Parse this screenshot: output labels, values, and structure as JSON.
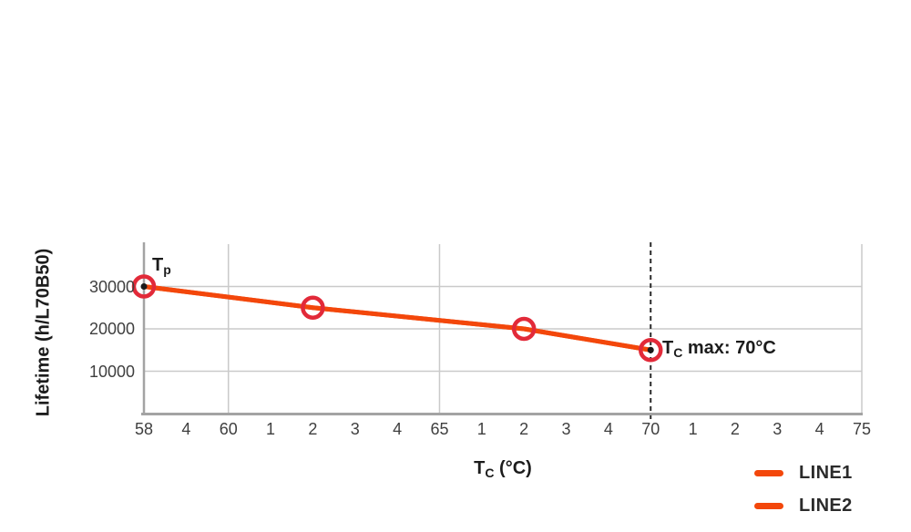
{
  "chart_data": {
    "type": "line",
    "title": "",
    "ylabel": "Lifetime (h/L70B50)",
    "xlabel": {
      "main": "T",
      "sub": "C",
      "rest": " (°C)"
    },
    "axes": {
      "xlim": [
        58,
        75
      ],
      "ylim": [
        0,
        40000
      ],
      "xtick_step": 1,
      "xtick_labels": [
        "58",
        "4",
        "60",
        "1",
        "2",
        "3",
        "4",
        "65",
        "1",
        "2",
        "3",
        "4",
        "70",
        "1",
        "2",
        "3",
        "4",
        "75"
      ],
      "ytick_values": [
        30000,
        20000,
        10000
      ],
      "ytick_labels": [
        "30000",
        "20000",
        "10000"
      ],
      "x_gridlines_at": [
        60,
        65,
        75
      ],
      "y_gridlines_at": [
        30000,
        20000,
        10000
      ],
      "dashed_vline_x": 70,
      "grid": true
    },
    "series": [
      {
        "name": "LINE1",
        "x": [
          58,
          62,
          67,
          70
        ],
        "y": [
          30000,
          25000,
          20000,
          15000
        ]
      },
      {
        "name": "LINE2",
        "x": [
          58,
          62,
          67,
          70
        ],
        "y": [
          30000,
          25000,
          20000,
          15000
        ]
      }
    ],
    "marker_points": [
      [
        58,
        30000
      ],
      [
        62,
        25000
      ],
      [
        67,
        20000
      ],
      [
        70,
        15000
      ]
    ],
    "endpoint_dot_points": [
      [
        58,
        30000
      ],
      [
        70,
        15000
      ]
    ],
    "annotations": [
      {
        "id": "tp",
        "main": "T",
        "sub": "p",
        "rest": "",
        "x": 58,
        "y": 30000
      },
      {
        "id": "tc-max",
        "main": "T",
        "sub": "C",
        "rest": " max: 70°C",
        "x": 70,
        "y": 15000
      }
    ],
    "legend": {
      "position": "bottom-right",
      "entries": [
        {
          "label": "LINE1"
        },
        {
          "label": "LINE2"
        }
      ]
    },
    "colors": {
      "line": "#F3470B",
      "marker_ring": "#E22A39",
      "marker_dot": "#1a1a1a",
      "grid": "#cacaca",
      "axis": "#a3a3a3",
      "dashed_line": "#2b2b2b",
      "tick_text": "#3f3f3f",
      "label_text": "#1c1c1c"
    }
  }
}
